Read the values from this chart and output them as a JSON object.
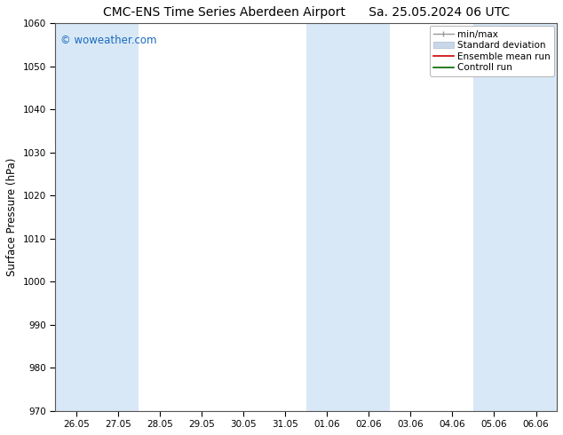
{
  "title_left": "CMC-ENS Time Series Aberdeen Airport",
  "title_right": "Sa. 25.05.2024 06 UTC",
  "ylabel": "Surface Pressure (hPa)",
  "ylim": [
    970,
    1060
  ],
  "yticks": [
    970,
    980,
    990,
    1000,
    1010,
    1020,
    1030,
    1040,
    1050,
    1060
  ],
  "xtick_labels": [
    "26.05",
    "27.05",
    "28.05",
    "29.05",
    "30.05",
    "31.05",
    "01.06",
    "02.06",
    "03.06",
    "04.06",
    "05.06",
    "06.06"
  ],
  "n_xticks": 12,
  "xlim": [
    -0.5,
    11.5
  ],
  "shaded_columns": [
    0,
    1,
    6,
    7,
    10,
    11
  ],
  "shaded_color": "#d9e8f6",
  "background_color": "#ffffff",
  "watermark_text": "© woweather.com",
  "watermark_color": "#1a6bbf",
  "title_fontsize": 10,
  "tick_fontsize": 7.5,
  "ylabel_fontsize": 8.5,
  "legend_fontsize": 7.5,
  "minmax_color": "#999999",
  "std_color": "#c8d8e8",
  "std_edge_color": "#aabbcc",
  "ensemble_color": "#cc0000",
  "control_color": "#006600"
}
